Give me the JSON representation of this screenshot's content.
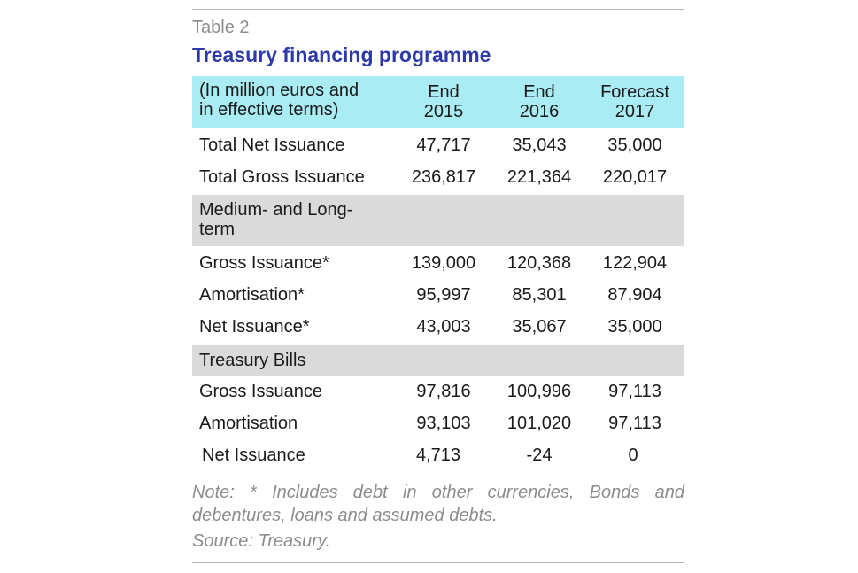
{
  "label": "Table 2",
  "title": "Treasury financing programme",
  "header": {
    "unit_line1": "(In million euros and",
    "unit_line2": "in effective terms)",
    "columns": [
      {
        "line1": "End",
        "line2": "2015"
      },
      {
        "line1": "End",
        "line2": "2016"
      },
      {
        "line1": "Forecast",
        "line2": "2017"
      }
    ]
  },
  "rows": {
    "total_net": {
      "label": "Total Net Issuance",
      "values": [
        "47,717",
        "35,043",
        "35,000"
      ]
    },
    "total_gross": {
      "label": "Total Gross Issuance",
      "values": [
        "236,817",
        "221,364",
        "220,017"
      ]
    },
    "section_medium": {
      "line1": "Medium- and Long-",
      "line2": "term"
    },
    "ml_gross": {
      "label": "Gross Issuance*",
      "values": [
        "139,000",
        "120,368",
        "122,904"
      ]
    },
    "ml_amort": {
      "label": "Amortisation*",
      "values": [
        "95,997",
        "85,301",
        "87,904"
      ]
    },
    "ml_net": {
      "label": "Net Issuance*",
      "values": [
        "43,003",
        "35,067",
        "35,000"
      ]
    },
    "section_bills": {
      "label": "Treasury Bills"
    },
    "tb_gross": {
      "label": "Gross Issuance",
      "values": [
        "97,816",
        "100,996",
        "97,113"
      ]
    },
    "tb_amort": {
      "label": "Amortisation",
      "values": [
        "93,103",
        "101,020",
        "97,113"
      ]
    },
    "tb_net": {
      "label": "Net Issuance",
      "values": [
        "4,713",
        "-24",
        "0"
      ]
    }
  },
  "note": "Note: * Includes debt in other currencies, Bonds and debentures, loans and assumed debts.",
  "source": "Source: Treasury.",
  "colors": {
    "title": "#2e3aa8",
    "header_bg": "#a9ecf4",
    "section_bg": "#d9dbdb",
    "muted": "#8c8c8c"
  }
}
